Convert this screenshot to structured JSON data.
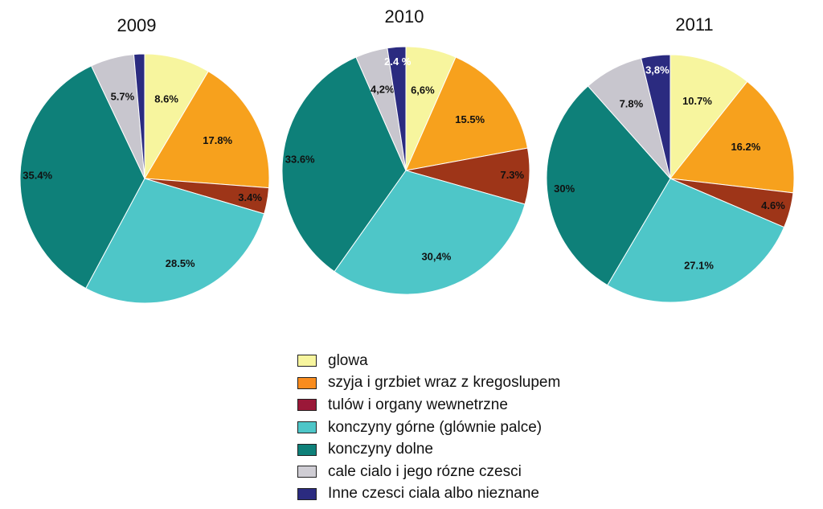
{
  "categories": [
    {
      "label": "glowa",
      "color": "#F7F59E",
      "swatch": "#F7F59E"
    },
    {
      "label": "szyja i grzbiet wraz z kregoslupem",
      "color": "#F7A11D",
      "swatch": "#F98C1E"
    },
    {
      "label": "tulów i organy wewnetrzne",
      "color": "#9E3518",
      "swatch": "#9A1838"
    },
    {
      "label": "konczyny górne (glównie palce)",
      "color": "#4EC6C8",
      "swatch": "#4EC6C8"
    },
    {
      "label": "konczyny dolne",
      "color": "#0E8079",
      "swatch": "#0E8079"
    },
    {
      "label": "cale cialo i jego rózne czesci",
      "color": "#C8C6CE",
      "swatch": "#CFCDD4"
    },
    {
      "label": "Inne czesci ciala albo nieznane",
      "color": "#2B2B80",
      "swatch": "#2B2B80"
    }
  ],
  "chart_data": [
    {
      "type": "pie",
      "title": "2009",
      "values": [
        8.6,
        17.8,
        3.4,
        28.5,
        35.4,
        5.7,
        1.4
      ],
      "labels": [
        "8.6%",
        "17.8%",
        "3.4%",
        "28.5%",
        "35.4%",
        "5.7%",
        ""
      ]
    },
    {
      "type": "pie",
      "title": "2010",
      "values": [
        6.6,
        15.5,
        7.3,
        30.4,
        33.6,
        4.2,
        2.4
      ],
      "labels": [
        "6,6%",
        "15.5%",
        "7.3%",
        "30,4%",
        "33.6%",
        "4,2%",
        "2.4 %"
      ]
    },
    {
      "type": "pie",
      "title": "2011",
      "values": [
        10.7,
        16.2,
        4.6,
        27.1,
        30,
        7.8,
        3.8
      ],
      "labels": [
        "10.7%",
        "16.2%",
        "4.6%",
        "27.1%",
        "30%",
        "7.8%",
        "3,8%"
      ]
    }
  ]
}
